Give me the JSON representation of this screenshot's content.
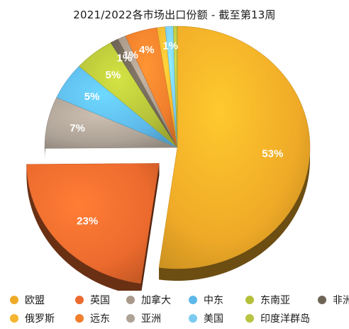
{
  "chart_data": {
    "type": "pie",
    "title": "2021/2022各市场出口份额 - 截至第13周",
    "slices": [
      {
        "name": "欧盟",
        "value": 53,
        "label": "53%",
        "color": "#EFAA27"
      },
      {
        "name": "英国",
        "value": 23,
        "label": "23%",
        "color": "#EC6A2D",
        "exploded": true
      },
      {
        "name": "亚洲",
        "value": 7,
        "label": "7%",
        "color": "#ADA296"
      },
      {
        "name": "中东",
        "value": 5,
        "label": "5%",
        "color": "#5DB8E9"
      },
      {
        "name": "东南亚",
        "value": 5,
        "label": "5%",
        "color": "#B4C039"
      },
      {
        "name": "非洲",
        "value": 1,
        "label": "1%",
        "color": "#6E6455"
      },
      {
        "name": "加拿大",
        "value": 1,
        "label": "1%",
        "color": "#A8998A"
      },
      {
        "name": "远东",
        "value": 4,
        "label": "4%",
        "color": "#F07E2C"
      },
      {
        "name": "俄罗斯",
        "value": 1,
        "label": "",
        "color": "#F5B530"
      },
      {
        "name": "美国",
        "value": 1,
        "label": "1%",
        "color": "#7CCBF0"
      },
      {
        "name": "印度洋群岛",
        "value": 0.5,
        "label": "",
        "color": "#B9C443"
      }
    ],
    "legend_position": "bottom",
    "legend": [
      {
        "name": "欧盟",
        "color": "#EFAA27"
      },
      {
        "name": "英国",
        "color": "#EC6A2D"
      },
      {
        "name": "加拿大",
        "color": "#A8998A"
      },
      {
        "name": "中东",
        "color": "#5DB8E9"
      },
      {
        "name": "东南亚",
        "color": "#B4C039"
      },
      {
        "name": "非洲",
        "color": "#6E6455"
      },
      {
        "name": "俄罗斯",
        "color": "#F5B530"
      },
      {
        "name": "远东",
        "color": "#F07E2C"
      },
      {
        "name": "亚洲",
        "color": "#ADA296"
      },
      {
        "name": "美国",
        "color": "#7CCBF0"
      },
      {
        "name": "印度洋群岛",
        "color": "#B9C443"
      }
    ]
  }
}
